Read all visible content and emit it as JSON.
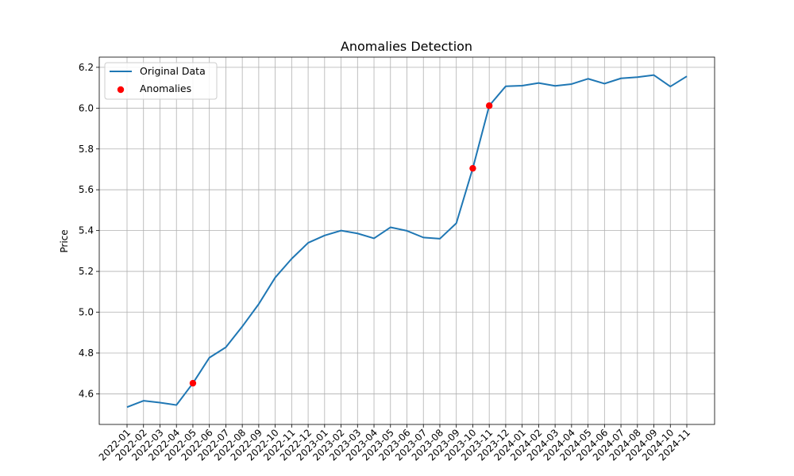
{
  "chart_data": {
    "type": "line",
    "title": "Anomalies Detection",
    "xlabel": "",
    "ylabel": "Price",
    "ylim": [
      4.45,
      6.25
    ],
    "yticks": [
      4.6,
      4.8,
      5.0,
      5.2,
      5.4,
      5.6,
      5.8,
      6.0,
      6.2
    ],
    "ytick_labels": [
      "4.6",
      "4.8",
      "5.0",
      "5.2",
      "5.4",
      "5.6",
      "5.8",
      "6.0",
      "6.2"
    ],
    "grid": true,
    "legend_position": "top-left",
    "x": [
      "2022-01",
      "2022-02",
      "2022-03",
      "2022-04",
      "2022-05",
      "2022-06",
      "2022-07",
      "2022-08",
      "2022-09",
      "2022-10",
      "2022-11",
      "2022-12",
      "2023-01",
      "2023-02",
      "2023-03",
      "2023-04",
      "2023-05",
      "2023-06",
      "2023-07",
      "2023-08",
      "2023-09",
      "2023-10",
      "2023-11",
      "2023-12",
      "2024-01",
      "2024-02",
      "2024-03",
      "2024-04",
      "2024-05",
      "2024-06",
      "2024-07",
      "2024-08",
      "2024-09",
      "2024-10",
      "2024-11"
    ],
    "series": [
      {
        "name": "Original Data",
        "color": "#1f77b4",
        "values": [
          4.535,
          4.566,
          4.557,
          4.545,
          4.652,
          4.777,
          4.828,
          4.93,
          5.04,
          5.17,
          5.262,
          5.34,
          5.376,
          5.4,
          5.386,
          5.362,
          5.416,
          5.399,
          5.366,
          5.36,
          5.436,
          5.705,
          6.012,
          6.107,
          6.11,
          6.123,
          6.109,
          6.118,
          6.144,
          6.12,
          6.146,
          6.152,
          6.162,
          6.106,
          6.156
        ]
      }
    ],
    "anomalies": {
      "name": "Anomalies",
      "color": "#ff0000",
      "points": [
        {
          "x": "2022-05",
          "y": 4.652
        },
        {
          "x": "2023-10",
          "y": 5.705
        },
        {
          "x": "2023-11",
          "y": 6.012
        }
      ]
    }
  }
}
